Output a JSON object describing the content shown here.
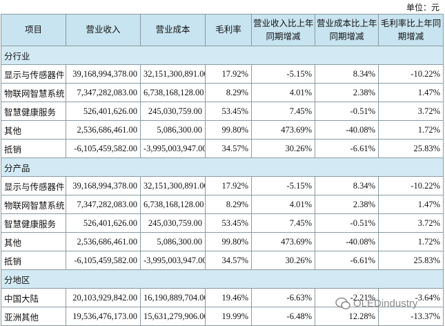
{
  "unit": "单位：元",
  "table": {
    "headers": [
      [
        "项目"
      ],
      [
        "营业收入"
      ],
      [
        "营业成本"
      ],
      [
        "毛利率"
      ],
      [
        "营业收入比上年",
        "同期增减"
      ],
      [
        "营业成本比上年",
        "同期增减"
      ],
      [
        "毛利率比上年同",
        "期增减"
      ]
    ],
    "sections": [
      {
        "label": "分行业",
        "rows": [
          [
            "显示与传感器件",
            "39,168,994,378.00",
            "32,151,300,891.00",
            "17.92%",
            "-5.15%",
            "8.34%",
            "-10.22%"
          ],
          [
            "物联网智慧系统",
            "7,347,282,083.00",
            "6,738,168,128.00",
            "8.29%",
            "4.01%",
            "2.38%",
            "1.47%"
          ],
          [
            "智慧健康服务",
            "526,401,626.00",
            "245,030,759.00",
            "53.45%",
            "7.45%",
            "-0.51%",
            "3.72%"
          ],
          [
            "其他",
            "2,536,686,461.00",
            "5,086,300.00",
            "99.80%",
            "473.69%",
            "-40.08%",
            "1.72%"
          ],
          [
            "抵销",
            "-6,105,459,582.00",
            "-3,995,003,947.00",
            "34.57%",
            "30.26%",
            "-6.61%",
            "25.83%"
          ]
        ]
      },
      {
        "label": "分产品",
        "rows": [
          [
            "显示与传感器件",
            "39,168,994,378.00",
            "32,151,300,891.00",
            "17.92%",
            "-5.15%",
            "8.34%",
            "-10.22%"
          ],
          [
            "物联网智慧系统",
            "7,347,282,083.00",
            "6,738,168,128.00",
            "8.29%",
            "4.01%",
            "2.38%",
            "1.47%"
          ],
          [
            "智慧健康服务",
            "526,401,626.00",
            "245,030,759.00",
            "53.45%",
            "7.45%",
            "-0.51%",
            "3.72%"
          ],
          [
            "其他",
            "2,536,686,461.00",
            "5,086,300.00",
            "99.80%",
            "473.69%",
            "-40.08%",
            "1.72%"
          ],
          [
            "抵销",
            "-6,105,459,582.00",
            "-3,995,003,947.00",
            "34.57%",
            "30.26%",
            "-6.61%",
            "25.83%"
          ]
        ]
      },
      {
        "label": "分地区",
        "rows": [
          [
            "中国大陆",
            "20,103,929,842.00",
            "16,190,889,704.00",
            "19.46%",
            "-6.63%",
            "-2.21%",
            "-3.64%"
          ],
          [
            "亚洲其他",
            "19,536,476,173.00",
            "15,631,279,906.00",
            "19.99%",
            "-6.48%",
            "12.28%",
            "-13.37%"
          ]
        ]
      }
    ]
  },
  "watermark": "OLEDindustry"
}
